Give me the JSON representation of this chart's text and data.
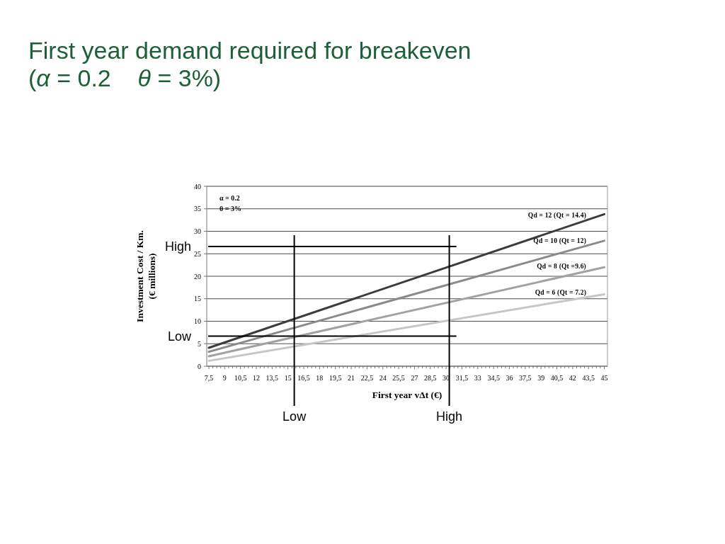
{
  "chart_data": {
    "type": "line",
    "title": "First year demand required for breakeven",
    "subtitle": "(α = 0.2    θ = 3%)",
    "xlabel": "First year vΔt (€)",
    "ylabel": "Investment Cost / Km.\n(€ millions)",
    "x": [
      7.5,
      45
    ],
    "xlim": [
      7.3,
      45.3
    ],
    "xticks": [
      {
        "value": 7.5,
        "label": "7,5"
      },
      9,
      {
        "value": 10.5,
        "label": "10,5"
      },
      12,
      {
        "value": 13.5,
        "label": "13,5"
      },
      15,
      {
        "value": 16.5,
        "label": "16,5"
      },
      18,
      {
        "value": 19.5,
        "label": "19,5"
      },
      21,
      {
        "value": 22.5,
        "label": "22,5"
      },
      24,
      {
        "value": 25.5,
        "label": "25,5"
      },
      27,
      {
        "value": 28.5,
        "label": "28,5"
      },
      30,
      {
        "value": 31.5,
        "label": "31,5"
      },
      33,
      {
        "value": 34.5,
        "label": "34,5"
      },
      36,
      {
        "value": 37.5,
        "label": "37,5"
      },
      39,
      {
        "value": 40.5,
        "label": "40,5"
      },
      42,
      {
        "value": 43.5,
        "label": "43,5"
      },
      45
    ],
    "ylim": [
      0,
      40
    ],
    "yticks": [
      0,
      5,
      10,
      15,
      20,
      25,
      30,
      35,
      40
    ],
    "grid": "y",
    "series": [
      {
        "name": "Qd = 12 (Qt = 14.4)",
        "color": "#3c3c3c",
        "values": [
          4.1,
          33.8
        ]
      },
      {
        "name": "Qd = 10 (Qt = 12)",
        "color": "#8a8a8a",
        "values": [
          3.2,
          27.9
        ]
      },
      {
        "name": "Qd = 8 (Qt =9.6)",
        "color": "#a2a2a2",
        "values": [
          2.2,
          22.0
        ]
      },
      {
        "name": "Qd = 6 (Qt = 7.2)",
        "color": "#c6c6c6",
        "values": [
          1.2,
          16.0
        ]
      }
    ],
    "ref_lines": [
      {
        "axis": "y",
        "value": 26.6,
        "label": "High",
        "color": "#000000"
      },
      {
        "axis": "y",
        "value": 6.7,
        "label": "Low",
        "color": "#000000"
      },
      {
        "axis": "x",
        "value": 15.6,
        "label": "Low",
        "color": "#000000"
      },
      {
        "axis": "x",
        "value": 30.3,
        "label": "High",
        "color": "#000000"
      }
    ],
    "annotations": [
      "α = 0.2",
      "θ = 3%"
    ]
  }
}
